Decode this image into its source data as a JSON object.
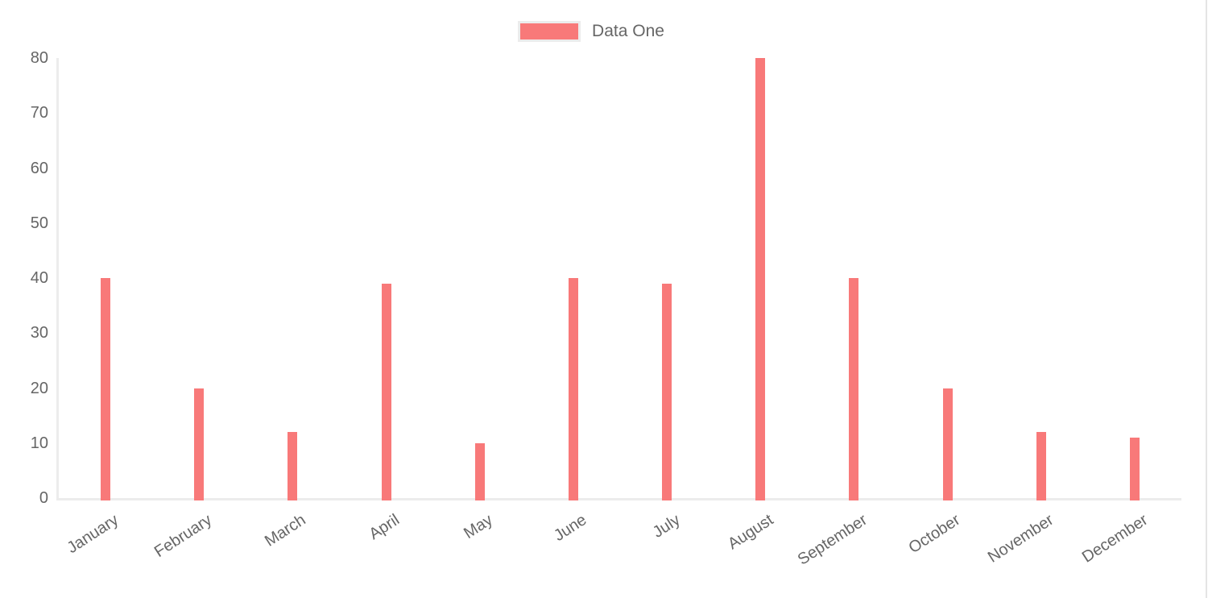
{
  "page": {
    "background": "#ffffff"
  },
  "legend": {
    "items": [
      {
        "label": "Data One",
        "color": "#f87979"
      }
    ]
  },
  "chart_data": {
    "type": "bar",
    "title": "",
    "xlabel": "",
    "ylabel": "",
    "categories": [
      "January",
      "February",
      "March",
      "April",
      "May",
      "June",
      "July",
      "August",
      "September",
      "October",
      "November",
      "December"
    ],
    "series": [
      {
        "name": "Data One",
        "color": "#f87979",
        "values": [
          40,
          20,
          12,
          39,
          10,
          40,
          39,
          80,
          40,
          20,
          12,
          11
        ]
      }
    ],
    "ylim": [
      0,
      80
    ],
    "y_ticks": [
      0,
      10,
      20,
      30,
      40,
      50,
      60,
      70,
      80
    ],
    "grid": false,
    "legend_position": "top-center",
    "x_label_rotation_deg": -33
  },
  "colors": {
    "bar": "#f87979",
    "axis_line": "#ececec",
    "tick_text": "#666666",
    "legend_text": "#666666",
    "page_edge": "#e4e4e4"
  }
}
